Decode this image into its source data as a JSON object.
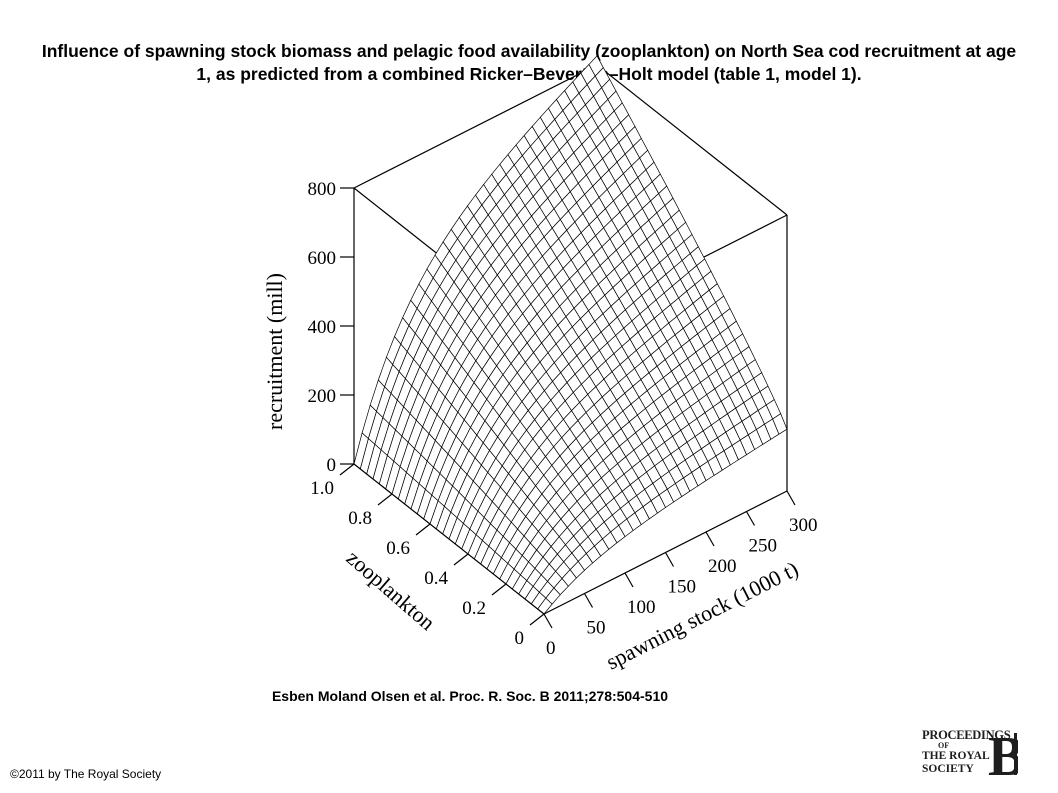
{
  "title": "Influence of spawning stock biomass and pelagic food availability (zooplankton) on North Sea cod recruitment at age 1, as predicted from a combined Ricker–Beverton–Holt model (table 1, model 1).",
  "citation": "Esben Moland Olsen et al. Proc. R. Soc. B 2011;278:504-510",
  "copyright": "©2011 by The Royal Society",
  "logo": {
    "line1": "PROCEEDINGS",
    "line2": "OF",
    "line3": "THE ROYAL",
    "line4": "SOCIETY",
    "letter": "B"
  },
  "chart_data": {
    "type": "surface",
    "xlabel": "spawning stock (1000 t)",
    "ylabel": "zooplankton",
    "zlabel": "recruitment (mill)",
    "xlim": [
      0,
      300
    ],
    "ylim": [
      0,
      1.0
    ],
    "zlim": [
      0,
      800
    ],
    "x_ticks": [
      "0",
      "50",
      "100",
      "150",
      "200",
      "250",
      "300"
    ],
    "y_ticks": [
      "0",
      "0.2",
      "0.4",
      "0.6",
      "0.8",
      "1.0"
    ],
    "z_ticks": [
      "0",
      "200",
      "400",
      "600",
      "800"
    ],
    "grid_resolution": 31,
    "corner_values": [
      {
        "spawning_stock": 0,
        "zooplankton": 0,
        "recruitment": 0
      },
      {
        "spawning_stock": 300,
        "zooplankton": 0,
        "recruitment": 180
      },
      {
        "spawning_stock": 0,
        "zooplankton": 1.0,
        "recruitment": 0
      },
      {
        "spawning_stock": 300,
        "zooplankton": 1.0,
        "recruitment": 830
      }
    ]
  }
}
